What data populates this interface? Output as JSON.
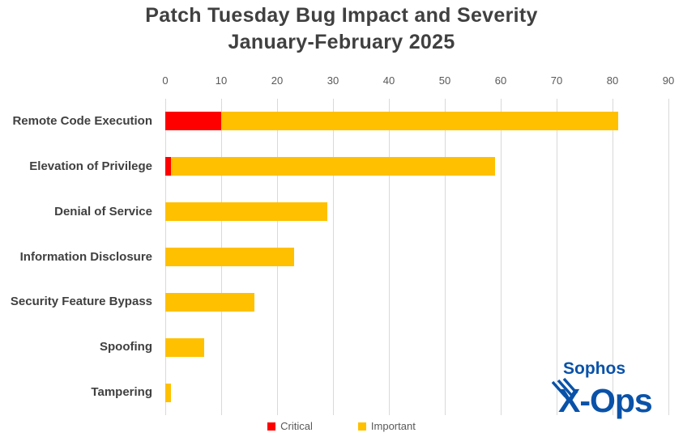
{
  "title": {
    "line1": "Patch Tuesday Bug Impact and Severity",
    "line2": "January-February 2025"
  },
  "chart_data": {
    "type": "bar",
    "orientation": "horizontal",
    "stacked": true,
    "title": "Patch Tuesday Bug Impact and Severity January-February 2025",
    "categories": [
      "Remote Code Execution",
      "Elevation of Privilege",
      "Denial of Service",
      "Information Disclosure",
      "Security Feature Bypass",
      "Spoofing",
      "Tampering"
    ],
    "series": [
      {
        "name": "Critical",
        "color": "#FF0000",
        "values": [
          10,
          1,
          0,
          0,
          0,
          0,
          0
        ]
      },
      {
        "name": "Important",
        "color": "#FFC000",
        "values": [
          71,
          58,
          29,
          23,
          16,
          7,
          1
        ]
      }
    ],
    "totals": [
      81,
      59,
      29,
      23,
      16,
      7,
      1
    ],
    "xlim": [
      0,
      90
    ],
    "xticks": [
      0,
      10,
      20,
      30,
      40,
      50,
      60,
      70,
      80,
      90
    ],
    "xlabel": "",
    "ylabel": "",
    "grid": "vertical-gridlines",
    "legend_position": "bottom"
  },
  "logo": {
    "brand": "Sophos",
    "team": "X-Ops",
    "color": "#0A52A8"
  },
  "colors": {
    "title_text": "#404040",
    "category_text": "#404040",
    "axis_text": "#595959",
    "gridline": "#D9D9D9",
    "background": "#FFFFFF",
    "critical": "#FF0000",
    "important": "#FFC000"
  }
}
